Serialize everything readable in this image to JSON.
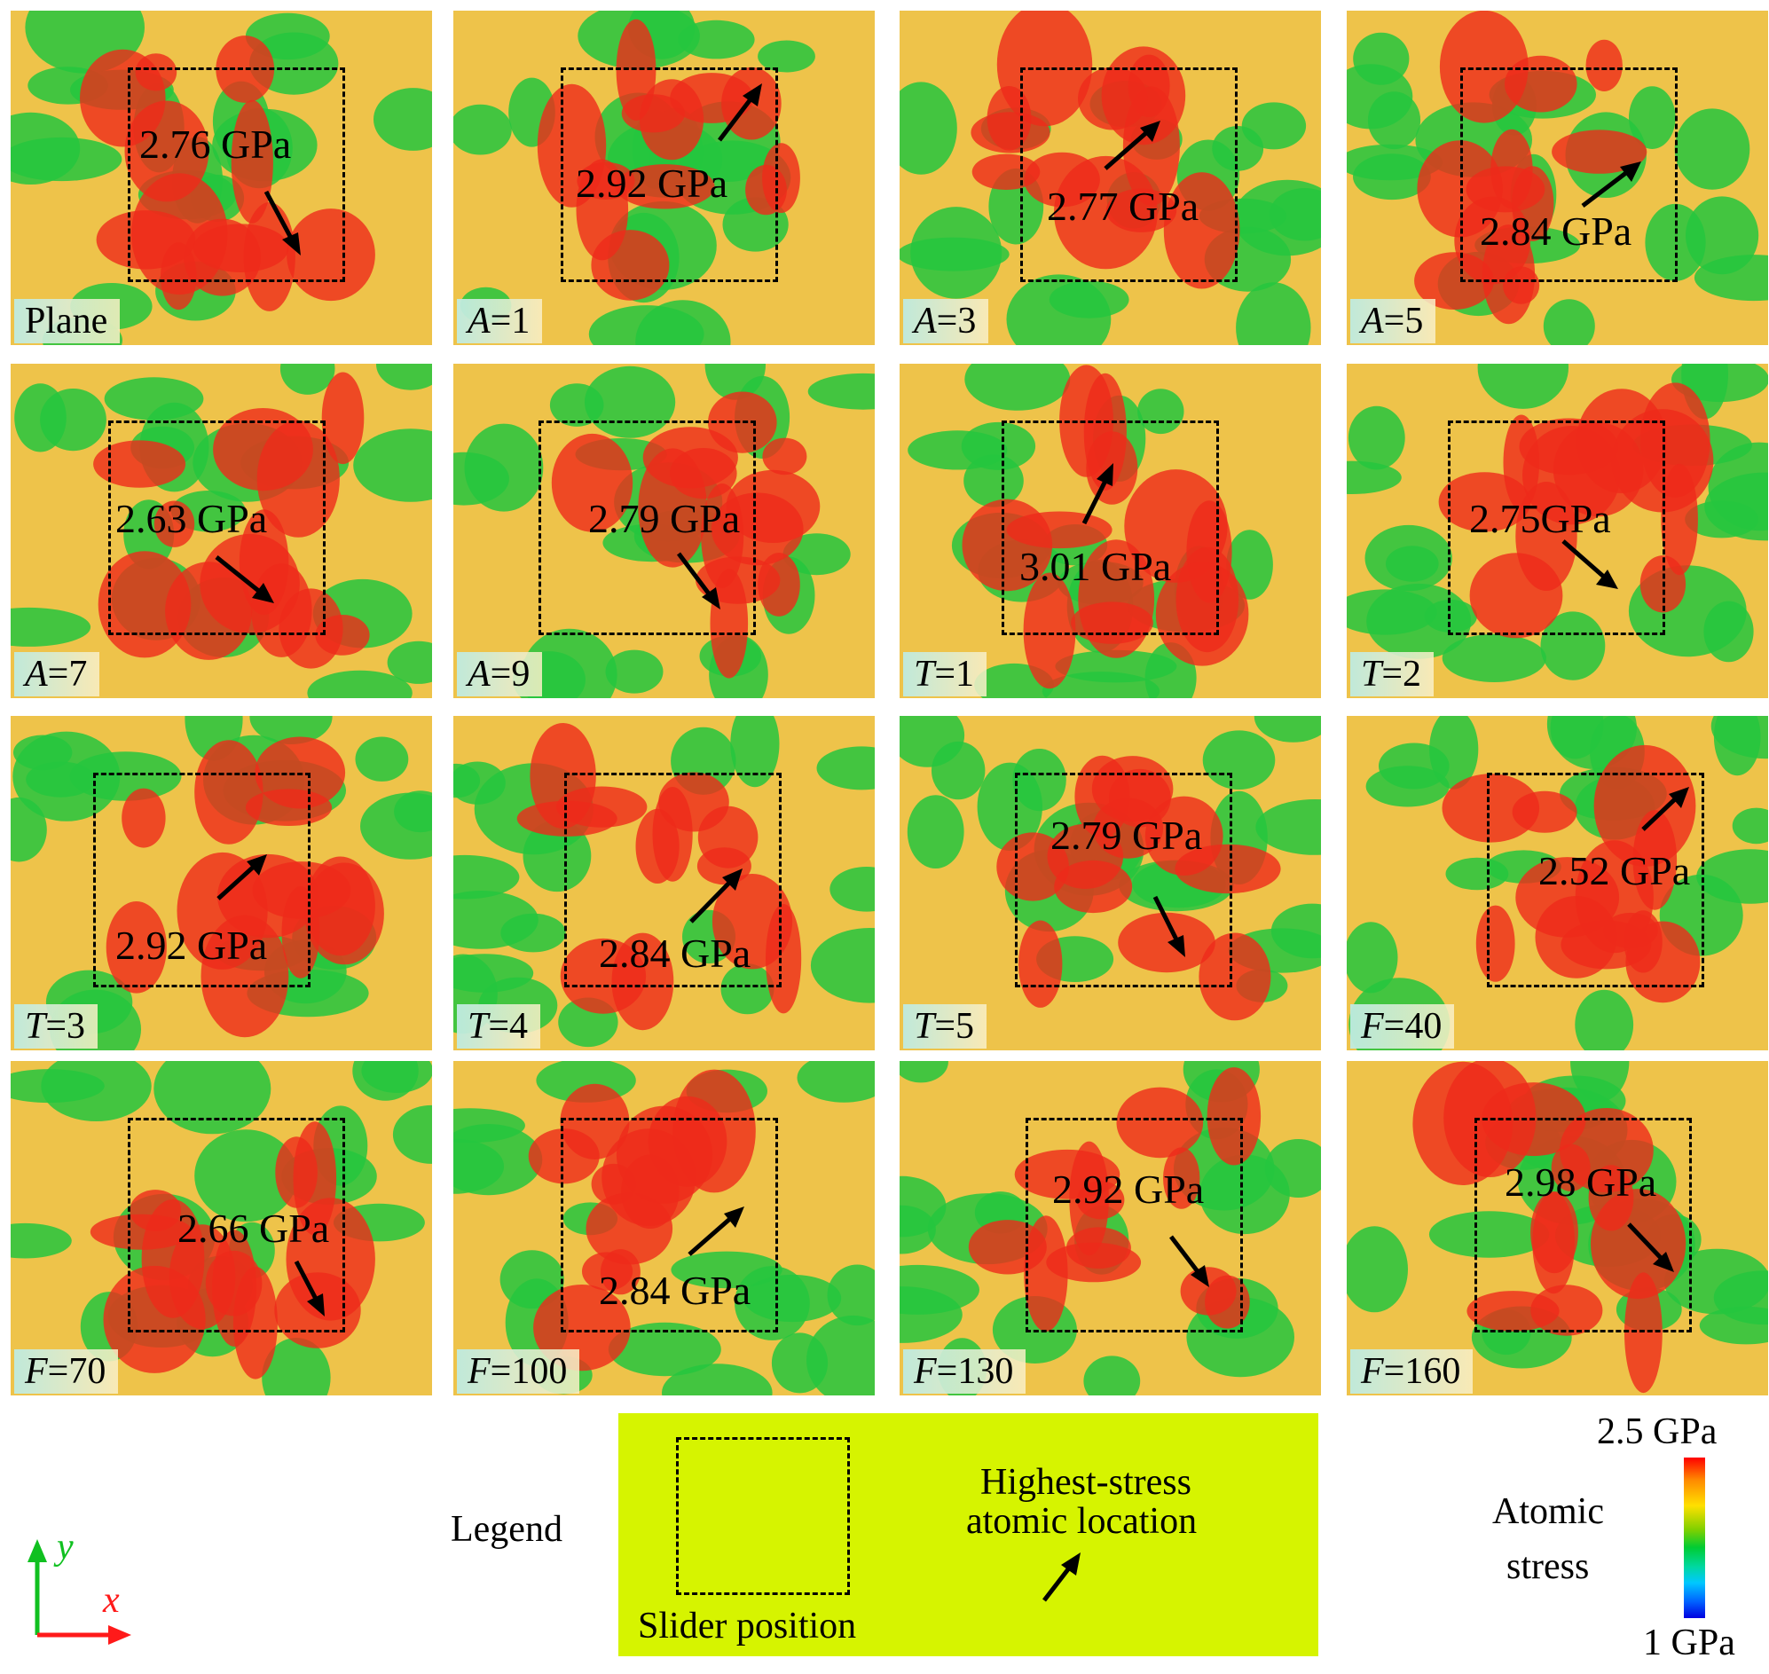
{
  "panels": [
    {
      "label_var": "",
      "label_rest": "Plane",
      "value": "2.76 GPa"
    },
    {
      "label_var": "A",
      "label_rest": "=1",
      "value": "2.92 GPa"
    },
    {
      "label_var": "A",
      "label_rest": "=3",
      "value": "2.77 GPa"
    },
    {
      "label_var": "A",
      "label_rest": "=5",
      "value": "2.84 GPa"
    },
    {
      "label_var": "A",
      "label_rest": "=7",
      "value": "2.63 GPa"
    },
    {
      "label_var": "A",
      "label_rest": "=9",
      "value": "2.79 GPa"
    },
    {
      "label_var": "T",
      "label_rest": "=1",
      "value": "3.01 GPa"
    },
    {
      "label_var": "T",
      "label_rest": "=2",
      "value": "2.75GPa"
    },
    {
      "label_var": "T",
      "label_rest": "=3",
      "value": "2.92 GPa"
    },
    {
      "label_var": "T",
      "label_rest": "=4",
      "value": "2.84 GPa"
    },
    {
      "label_var": "T",
      "label_rest": "=5",
      "value": "2.79 GPa"
    },
    {
      "label_var": "F",
      "label_rest": "=40",
      "value": "2.52 GPa"
    },
    {
      "label_var": "F",
      "label_rest": "=70",
      "value": "2.66 GPa"
    },
    {
      "label_var": "F",
      "label_rest": "=100",
      "value": "2.84 GPa"
    },
    {
      "label_var": "F",
      "label_rest": "=130",
      "value": "2.92 GPa"
    },
    {
      "label_var": "F",
      "label_rest": "=160",
      "value": "2.98 GPa"
    }
  ],
  "legend": {
    "title": "Legend",
    "slider_label": "Slider position",
    "highest_line1": "Highest-stress",
    "highest_line2": "atomic location"
  },
  "colorbar": {
    "title_line1": "Atomic",
    "title_line2": "stress",
    "max_label": "2.5 GPa",
    "min_label": "1 GPa"
  },
  "axes": {
    "x": "x",
    "y": "y"
  },
  "colors": {
    "high": "#ee2a1a",
    "mid": "#f2b830",
    "low": "#25c63e",
    "legend_bg": "#d6f400"
  }
}
